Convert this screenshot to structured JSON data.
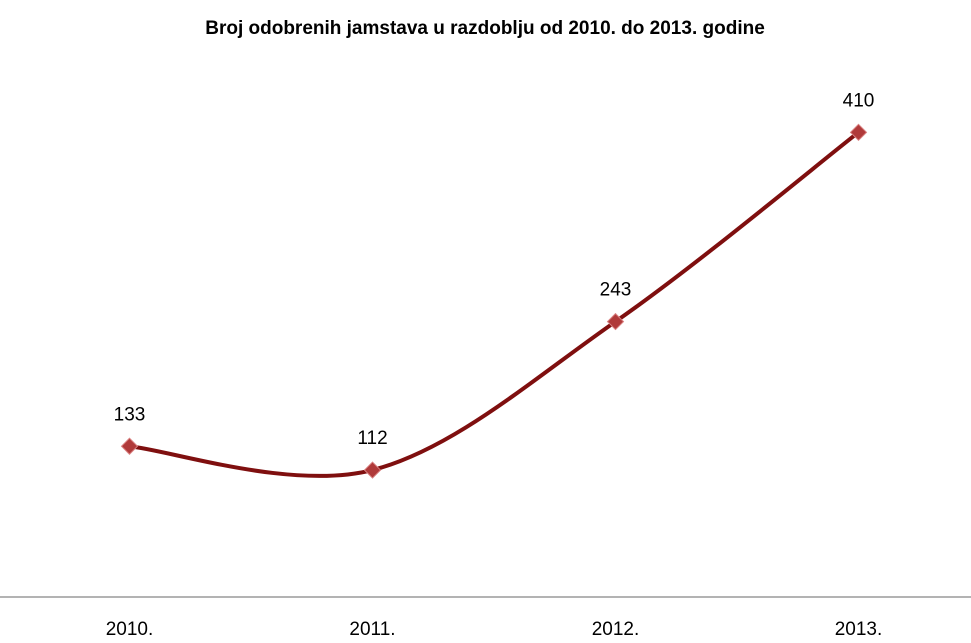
{
  "chart_data": {
    "type": "line",
    "title": "Broj odobrenih jamstava u razdoblju od 2010. do 2013. godine",
    "categories": [
      "2010.",
      "2011.",
      "2012.",
      "2013."
    ],
    "values": [
      133,
      112,
      243,
      410
    ],
    "color": "#7f0f0f",
    "marker_color": "#b03a3a",
    "ylim": [
      0,
      450
    ],
    "smooth": true
  }
}
